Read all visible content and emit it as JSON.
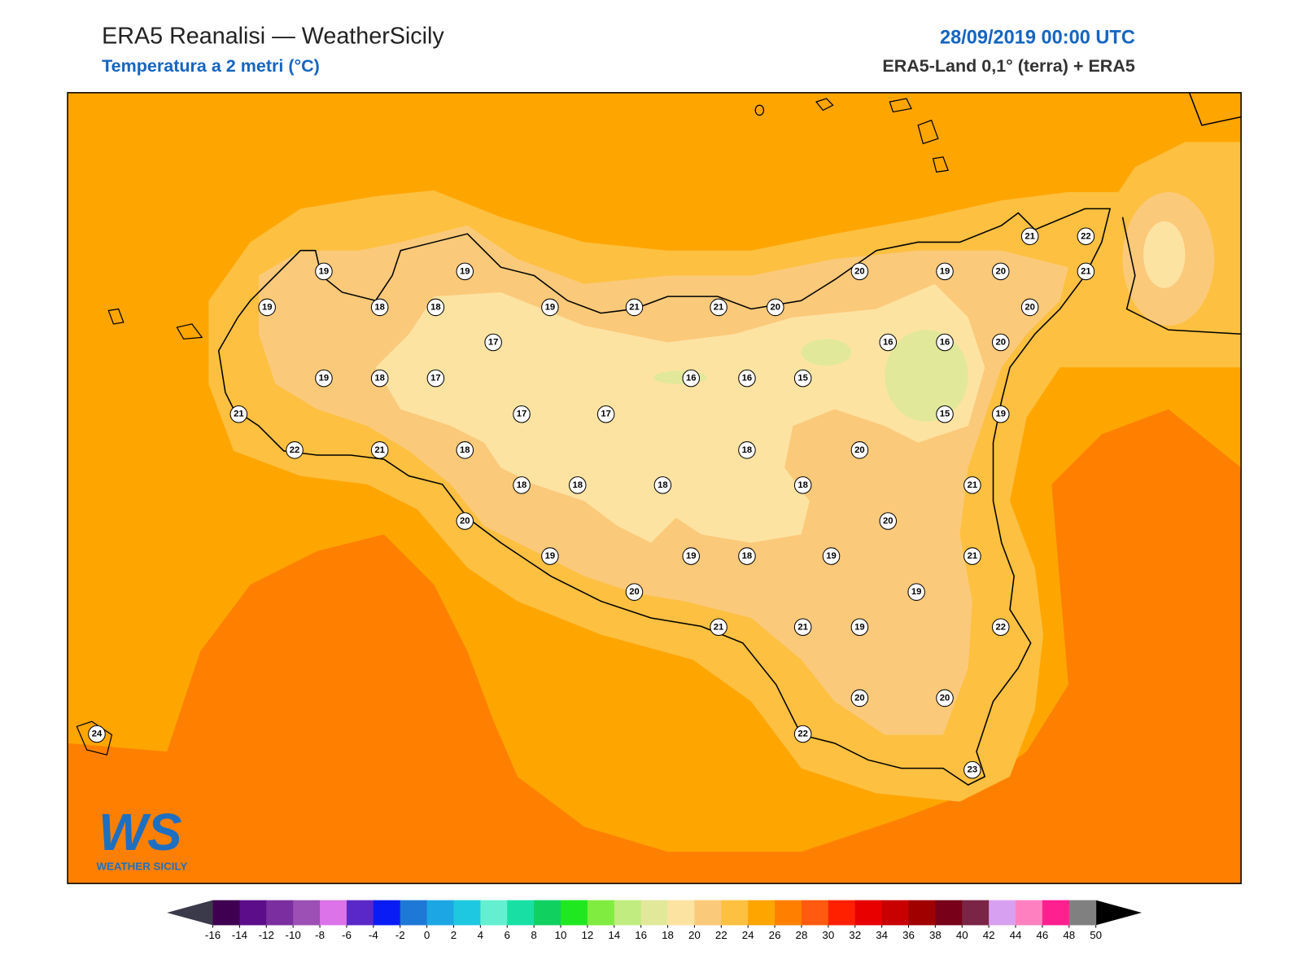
{
  "header": {
    "title": "ERA5 Reanalisi — WeatherSicily",
    "subtitle": "Temperatura a 2 metri (°C)",
    "datetime": "28/09/2019 00:00 UTC",
    "source": "ERA5-Land 0,1° (terra) + ERA5"
  },
  "stations": [
    19,
    19,
    19,
    18,
    18,
    19,
    21,
    21,
    20,
    20,
    19,
    20,
    21,
    22,
    21,
    20,
    17,
    16,
    16,
    20,
    19,
    18,
    17,
    16,
    16,
    15,
    17,
    17,
    15,
    19,
    21,
    22,
    21,
    18,
    18,
    20,
    18,
    18,
    18,
    18,
    21,
    20,
    20,
    19,
    19,
    18,
    19,
    21,
    20,
    19,
    21,
    21,
    19,
    22,
    20,
    20,
    22,
    23,
    24
  ],
  "colorbar": {
    "ticks": [
      -16,
      -14,
      -12,
      -10,
      -8,
      -6,
      -4,
      -2,
      0,
      2,
      4,
      6,
      8,
      10,
      12,
      14,
      16,
      18,
      20,
      22,
      24,
      26,
      28,
      30,
      32,
      34,
      36,
      38,
      40,
      42,
      44,
      46,
      48,
      50
    ],
    "colors": [
      "#3f0051",
      "#5c0e8a",
      "#7b2ea0",
      "#9c4fb4",
      "#dc73e8",
      "#5a28c8",
      "#0a1cf5",
      "#1e78d6",
      "#1ca6e3",
      "#1ec8e0",
      "#64f0d0",
      "#18e0a4",
      "#10d060",
      "#20e820",
      "#80ec40",
      "#c0ec80",
      "#e2e89a",
      "#fde3a2",
      "#fbc97a",
      "#fdc040",
      "#ffa500",
      "#ff8000",
      "#ff5a10",
      "#ff2000",
      "#e80000",
      "#c80000",
      "#a00000",
      "#780018",
      "#7a2545",
      "#d8a0f0",
      "#ff80c0",
      "#ff2090",
      "#808080",
      "#333333"
    ],
    "extend_colors": [
      "#3a3a4a",
      "#000000"
    ]
  },
  "logo": {
    "mark": "WS",
    "name": "WEATHER SICILY"
  }
}
